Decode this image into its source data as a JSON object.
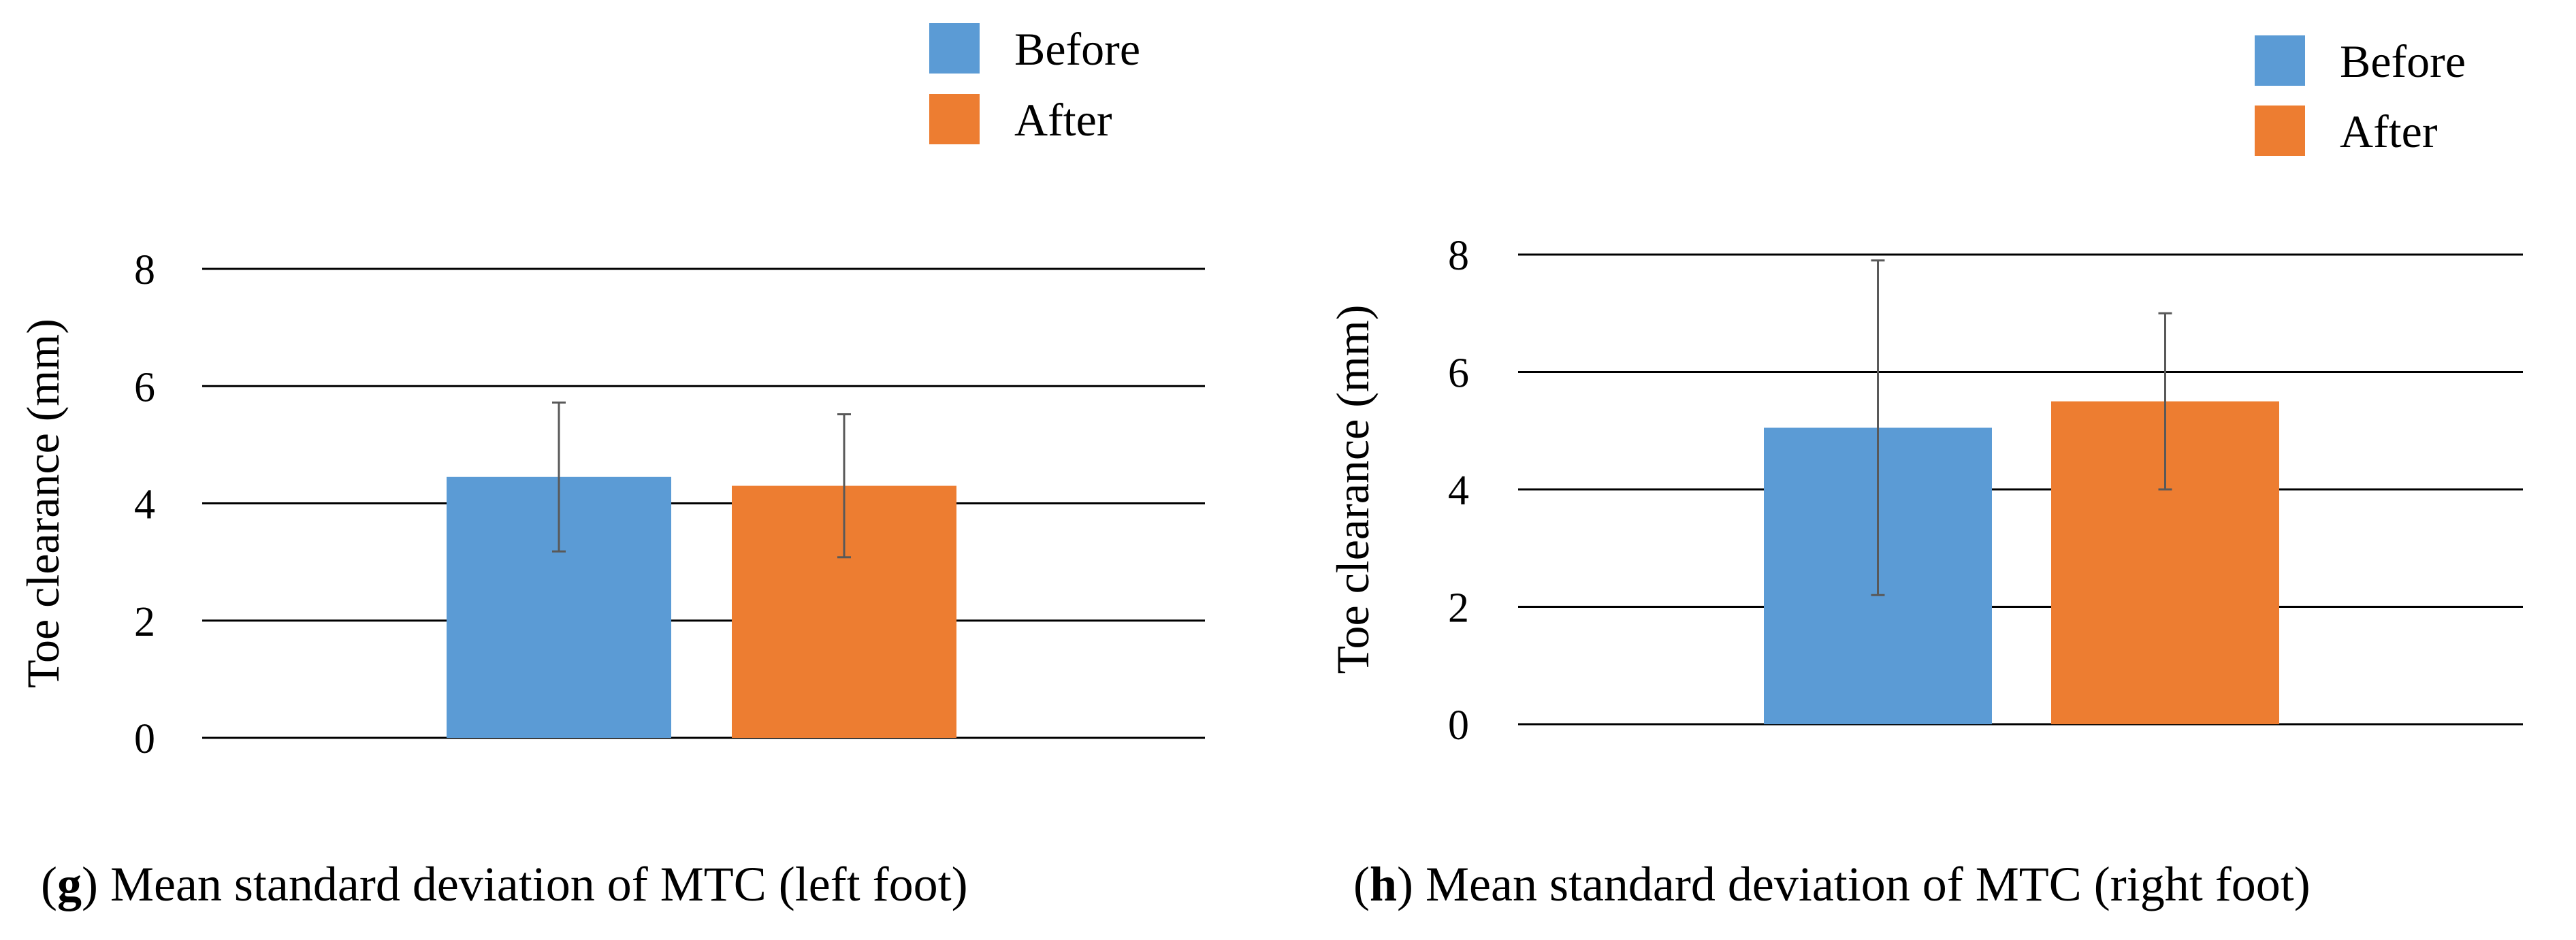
{
  "chart_data": [
    {
      "id": "g",
      "type": "bar",
      "title": "",
      "xlabel": "",
      "ylabel": "Toe clearance (mm)",
      "ylim": [
        0,
        8
      ],
      "yticks": [
        0,
        2,
        4,
        6,
        8
      ],
      "grid": true,
      "legend_position": "top-right",
      "series": [
        {
          "name": "Before",
          "color": "#5B9BD5",
          "values": [
            4.45
          ],
          "error": [
            1.27
          ]
        },
        {
          "name": "After",
          "color": "#ED7D31",
          "values": [
            4.3
          ],
          "error": [
            1.22
          ]
        }
      ],
      "caption": {
        "letter": "g",
        "text": " Mean standard deviation of MTC (left foot)"
      }
    },
    {
      "id": "h",
      "type": "bar",
      "title": "",
      "xlabel": "",
      "ylabel": "Toe clearance (mm)",
      "ylim": [
        0,
        8
      ],
      "yticks": [
        0,
        2,
        4,
        6,
        8
      ],
      "grid": true,
      "legend_position": "top-right",
      "series": [
        {
          "name": "Before",
          "color": "#5B9BD5",
          "values": [
            5.05
          ],
          "error": [
            2.85
          ]
        },
        {
          "name": "After",
          "color": "#ED7D31",
          "values": [
            5.5
          ],
          "error": [
            1.5
          ]
        }
      ],
      "caption": {
        "letter": "h",
        "text": " Mean standard deviation of MTC (right foot)"
      }
    }
  ]
}
